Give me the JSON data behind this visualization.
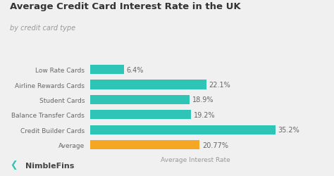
{
  "title": "Average Credit Card Interest Rate in the UK",
  "subtitle": "by credit card type",
  "categories": [
    "Low Rate Cards",
    "Airline Rewards Cards",
    "Student Cards",
    "Balance Transfer Cards",
    "Credit Builder Cards",
    "Average"
  ],
  "values": [
    6.4,
    22.1,
    18.9,
    19.2,
    35.2,
    20.77
  ],
  "labels": [
    "6.4%",
    "22.1%",
    "18.9%",
    "19.2%",
    "35.2%",
    "20.77%"
  ],
  "bar_colors": [
    "#2ec4b6",
    "#2ec4b6",
    "#2ec4b6",
    "#2ec4b6",
    "#2ec4b6",
    "#f5a623"
  ],
  "teal_color": "#2ec4b6",
  "gold_color": "#f5a623",
  "xlabel": "Average Interest Rate",
  "xlim": [
    0,
    40
  ],
  "background_color": "#f0f0f0",
  "title_fontsize": 9.5,
  "subtitle_fontsize": 7,
  "label_fontsize": 7,
  "tick_fontsize": 6.5,
  "xlabel_fontsize": 6.5,
  "nimblefins_text": "NimbleFins",
  "bar_height": 0.62
}
